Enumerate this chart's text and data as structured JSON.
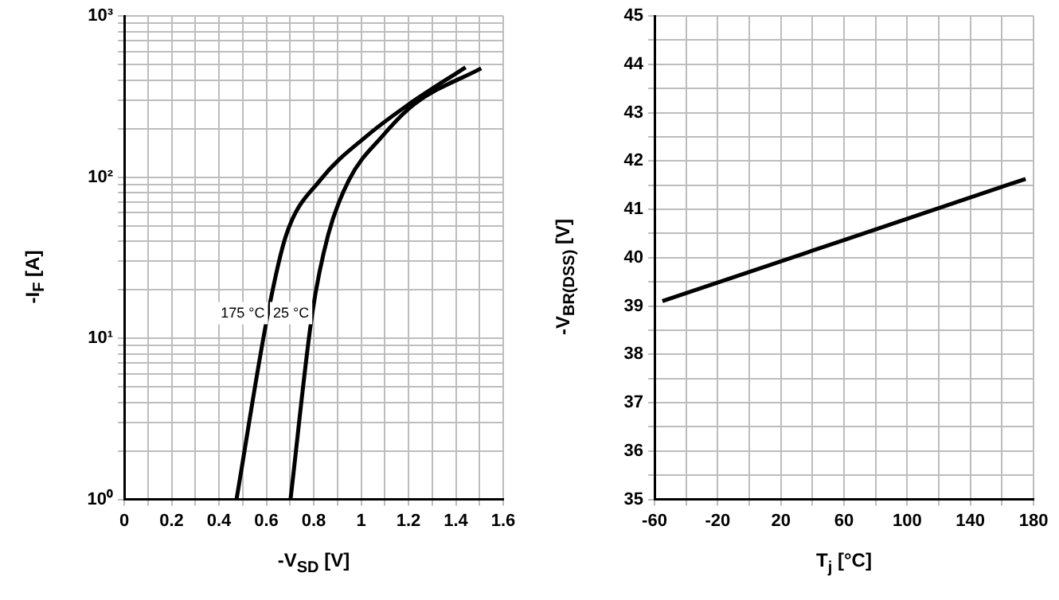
{
  "chart_data": [
    {
      "type": "line",
      "xlabel": "-V$_{SD}$ [V]",
      "ylabel": "-I$_{F}$ [A]",
      "log": "y",
      "grid": true,
      "marker": "none",
      "xlim": [
        0,
        1.6
      ],
      "xticks": [
        0,
        {
          "value": 0.1,
          "label": null
        },
        0.2,
        {
          "value": 0.3,
          "label": null
        },
        0.4,
        {
          "value": 0.5,
          "label": null
        },
        0.6,
        {
          "value": 0.7,
          "label": null
        },
        0.8,
        {
          "value": 0.9,
          "label": null
        },
        1,
        {
          "value": 1.1,
          "label": null
        },
        1.2,
        {
          "value": 1.3,
          "label": null
        },
        1.4,
        {
          "value": 1.5,
          "label": null
        },
        1.6
      ],
      "ylim": [
        1,
        1000
      ],
      "yticks": [
        {
          "value": 1,
          "label": "10⁰"
        },
        {
          "value": 2,
          "label": null
        },
        {
          "value": 3,
          "label": null
        },
        {
          "value": 4,
          "label": null
        },
        {
          "value": 5,
          "label": null
        },
        {
          "value": 6,
          "label": null
        },
        {
          "value": 7,
          "label": null
        },
        {
          "value": 8,
          "label": null
        },
        {
          "value": 9,
          "label": null
        },
        {
          "value": 10,
          "label": "10¹"
        },
        {
          "value": 20,
          "label": null
        },
        {
          "value": 30,
          "label": null
        },
        {
          "value": 40,
          "label": null
        },
        {
          "value": 50,
          "label": null
        },
        {
          "value": 60,
          "label": null
        },
        {
          "value": 70,
          "label": null
        },
        {
          "value": 80,
          "label": null
        },
        {
          "value": 90,
          "label": null
        },
        {
          "value": 100,
          "label": "10²"
        },
        {
          "value": 200,
          "label": null
        },
        {
          "value": 300,
          "label": null
        },
        {
          "value": 400,
          "label": null
        },
        {
          "value": 500,
          "label": null
        },
        {
          "value": 600,
          "label": null
        },
        {
          "value": 700,
          "label": null
        },
        {
          "value": 800,
          "label": null
        },
        {
          "value": 900,
          "label": null
        },
        {
          "value": 1000,
          "label": "10³"
        }
      ],
      "series": [
        {
          "name": "175 °C",
          "color": "#000000",
          "x": [
            0.474,
            0.607,
            0.684,
            0.828,
            1.026,
            1.203,
            1.441
          ],
          "values": [
            1,
            14.3,
            43.8,
            96,
            181,
            284,
            480
          ]
        },
        {
          "name": "25 °C",
          "color": "#000000",
          "x": [
            0.702,
            0.794,
            0.861,
            0.949,
            1.092,
            1.225,
            1.507
          ],
          "values": [
            1,
            14.3,
            43.8,
            96,
            181,
            284,
            473
          ]
        }
      ]
    },
    {
      "type": "line",
      "xlabel": "T$_{j}$ [°C]",
      "ylabel": "-V$_{BR(DSS)}$ [V]",
      "grid": true,
      "marker": "none",
      "xlim": [
        -60,
        180
      ],
      "xticks": [
        -60,
        {
          "value": -40,
          "label": null
        },
        -20,
        {
          "value": 0,
          "label": null
        },
        20,
        {
          "value": 40,
          "label": null
        },
        60,
        {
          "value": 80,
          "label": null
        },
        100,
        {
          "value": 120,
          "label": null
        },
        140,
        {
          "value": 160,
          "label": null
        },
        180
      ],
      "ylim": [
        35,
        45
      ],
      "yticks": [
        35,
        {
          "value": 35.5,
          "label": null
        },
        36,
        {
          "value": 36.5,
          "label": null
        },
        37,
        {
          "value": 37.5,
          "label": null
        },
        38,
        {
          "value": 38.5,
          "label": null
        },
        39,
        {
          "value": 39.5,
          "label": null
        },
        40,
        {
          "value": 40.5,
          "label": null
        },
        41,
        {
          "value": 41.5,
          "label": null
        },
        42,
        {
          "value": 42.5,
          "label": null
        },
        43,
        {
          "value": 43.5,
          "label": null
        },
        44,
        {
          "value": 44.5,
          "label": null
        },
        45
      ],
      "series": [
        {
          "color": "#000000",
          "x": [
            -55,
            175
          ],
          "values": [
            39.1,
            41.63
          ]
        }
      ]
    }
  ]
}
